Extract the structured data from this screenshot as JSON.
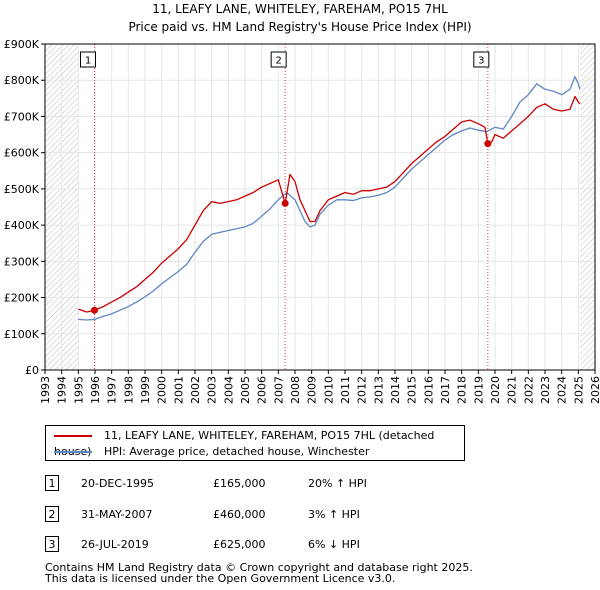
{
  "chart_data": {
    "type": "line",
    "title": "11, LEAFY LANE, WHITELEY, FAREHAM, PO15 7HL",
    "subtitle": "Price paid vs. HM Land Registry's House Price Index (HPI)",
    "xlim": [
      1993,
      2026
    ],
    "ylim": [
      0,
      900000
    ],
    "x_ticks": [
      "1993",
      "1994",
      "1995",
      "1996",
      "1997",
      "1998",
      "1999",
      "2000",
      "2001",
      "2002",
      "2003",
      "2004",
      "2005",
      "2006",
      "2007",
      "2008",
      "2009",
      "2010",
      "2011",
      "2012",
      "2013",
      "2014",
      "2015",
      "2016",
      "2017",
      "2018",
      "2019",
      "2020",
      "2021",
      "2022",
      "2023",
      "2024",
      "2025",
      "2026"
    ],
    "y_ticks": [
      {
        "value": 0,
        "label": "£0"
      },
      {
        "value": 100000,
        "label": "£100K"
      },
      {
        "value": 200000,
        "label": "£200K"
      },
      {
        "value": 300000,
        "label": "£300K"
      },
      {
        "value": 400000,
        "label": "£400K"
      },
      {
        "value": 500000,
        "label": "£500K"
      },
      {
        "value": 600000,
        "label": "£600K"
      },
      {
        "value": 700000,
        "label": "£700K"
      },
      {
        "value": 800000,
        "label": "£800K"
      },
      {
        "value": 900000,
        "label": "£900K"
      }
    ],
    "hatched_before": 1995.0,
    "hatched_after": 2025.1,
    "series": [
      {
        "name": "11, LEAFY LANE, WHITELEY, FAREHAM, PO15 7HL (detached house)",
        "color": "#cc0000",
        "x": [
          1995.0,
          1995.5,
          1995.97,
          1996.5,
          1997.0,
          1997.5,
          1998.0,
          1998.5,
          1999.0,
          1999.5,
          2000.0,
          2000.5,
          2001.0,
          2001.5,
          2002.0,
          2002.5,
          2003.0,
          2003.5,
          2004.0,
          2004.5,
          2005.0,
          2005.5,
          2006.0,
          2006.5,
          2007.0,
          2007.41,
          2007.7,
          2008.0,
          2008.3,
          2008.6,
          2008.9,
          2009.2,
          2009.5,
          2010.0,
          2010.5,
          2011.0,
          2011.5,
          2012.0,
          2012.5,
          2013.0,
          2013.5,
          2014.0,
          2014.5,
          2015.0,
          2015.5,
          2016.0,
          2016.5,
          2017.0,
          2017.5,
          2018.0,
          2018.5,
          2019.0,
          2019.4,
          2019.57,
          2019.8,
          2020.0,
          2020.5,
          2021.0,
          2021.5,
          2022.0,
          2022.5,
          2023.0,
          2023.5,
          2024.0,
          2024.5,
          2024.8,
          2025.0,
          2025.1
        ],
        "values": [
          168000,
          160000,
          165000,
          175000,
          188000,
          200000,
          215000,
          230000,
          250000,
          270000,
          295000,
          315000,
          335000,
          360000,
          400000,
          440000,
          465000,
          460000,
          465000,
          470000,
          480000,
          490000,
          505000,
          515000,
          525000,
          460000,
          540000,
          520000,
          470000,
          440000,
          410000,
          410000,
          440000,
          470000,
          480000,
          490000,
          485000,
          495000,
          495000,
          500000,
          505000,
          520000,
          545000,
          570000,
          590000,
          610000,
          630000,
          645000,
          665000,
          685000,
          690000,
          680000,
          670000,
          625000,
          630000,
          650000,
          640000,
          660000,
          680000,
          700000,
          725000,
          735000,
          720000,
          715000,
          720000,
          755000,
          740000,
          735000
        ]
      },
      {
        "name": "HPI: Average price, detached house, Winchester",
        "color": "#5f87c5",
        "x": [
          1995.0,
          1995.5,
          1996.0,
          1996.5,
          1997.0,
          1997.5,
          1998.0,
          1998.5,
          1999.0,
          1999.5,
          2000.0,
          2000.5,
          2001.0,
          2001.5,
          2002.0,
          2002.5,
          2003.0,
          2003.5,
          2004.0,
          2004.5,
          2005.0,
          2005.5,
          2006.0,
          2006.5,
          2007.0,
          2007.5,
          2008.0,
          2008.3,
          2008.6,
          2008.9,
          2009.2,
          2009.5,
          2010.0,
          2010.5,
          2011.0,
          2011.5,
          2012.0,
          2012.5,
          2013.0,
          2013.5,
          2014.0,
          2014.5,
          2015.0,
          2015.5,
          2016.0,
          2016.5,
          2017.0,
          2017.5,
          2018.0,
          2018.5,
          2019.0,
          2019.5,
          2020.0,
          2020.5,
          2021.0,
          2021.5,
          2022.0,
          2022.5,
          2023.0,
          2023.5,
          2024.0,
          2024.5,
          2024.8,
          2025.0,
          2025.1
        ],
        "values": [
          140000,
          138000,
          140000,
          148000,
          155000,
          165000,
          175000,
          188000,
          202000,
          218000,
          238000,
          255000,
          272000,
          292000,
          325000,
          355000,
          375000,
          380000,
          385000,
          390000,
          395000,
          405000,
          425000,
          445000,
          470000,
          490000,
          470000,
          440000,
          410000,
          395000,
          400000,
          430000,
          455000,
          470000,
          470000,
          468000,
          475000,
          478000,
          482000,
          490000,
          505000,
          530000,
          555000,
          575000,
          595000,
          615000,
          635000,
          650000,
          660000,
          668000,
          662000,
          658000,
          670000,
          665000,
          700000,
          740000,
          760000,
          790000,
          775000,
          770000,
          760000,
          775000,
          810000,
          790000,
          775000
        ]
      }
    ],
    "sales": [
      {
        "label": "1",
        "x": 1995.97,
        "value": 165000
      },
      {
        "label": "2",
        "x": 2007.41,
        "value": 460000
      },
      {
        "label": "3",
        "x": 2019.57,
        "value": 625000
      }
    ]
  },
  "legend": {
    "property": "11, LEAFY LANE, WHITELEY, FAREHAM, PO15 7HL (detached house)",
    "hpi": "HPI: Average price, detached house, Winchester"
  },
  "transactions": [
    {
      "num": "1",
      "date": "20-DEC-1995",
      "price": "£165,000",
      "hpi": "20% ↑ HPI"
    },
    {
      "num": "2",
      "date": "31-MAY-2007",
      "price": "£460,000",
      "hpi": "3% ↑ HPI"
    },
    {
      "num": "3",
      "date": "26-JUL-2019",
      "price": "£625,000",
      "hpi": "6% ↓ HPI"
    }
  ],
  "footer": {
    "line1": "Contains HM Land Registry data © Crown copyright and database right 2025.",
    "line2": "This data is licensed under the Open Government Licence v3.0."
  },
  "colors": {
    "property": "#cc0000",
    "hpi": "#5f87c5",
    "grid": "#e6e6e6",
    "sale_line": "#dd4444"
  }
}
